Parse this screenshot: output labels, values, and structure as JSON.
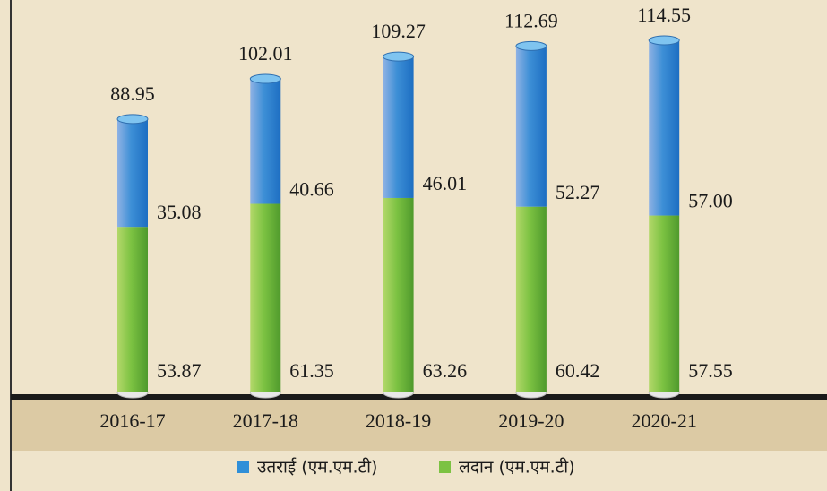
{
  "chart_data": {
    "type": "bar",
    "stacked": true,
    "categories": [
      "2016-17",
      "2017-18",
      "2018-19",
      "2019-20",
      "2020-21"
    ],
    "totals": [
      88.95,
      102.01,
      109.27,
      112.69,
      114.55
    ],
    "series": [
      {
        "name": "उतराई (एम.एम.टी)",
        "color": "#2f8fd8",
        "values": [
          35.08,
          40.66,
          46.01,
          52.27,
          57.0
        ],
        "value_labels": [
          "35.08",
          "40.66",
          "46.01",
          "52.27",
          "57.00"
        ]
      },
      {
        "name": "लदान (एम.एम.टी)",
        "color": "#7cc242",
        "values": [
          53.87,
          61.35,
          63.26,
          60.42,
          57.55
        ]
      }
    ]
  }
}
